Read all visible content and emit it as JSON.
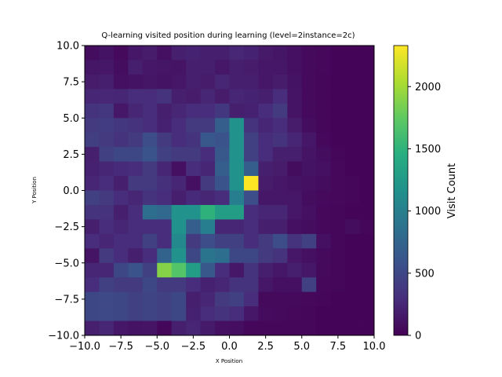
{
  "chart_data": {
    "type": "heatmap",
    "title": "Q-learning visited position during learning (level=2instance=2c)",
    "xlabel": "X Position",
    "ylabel": "Y Position",
    "xlim": [
      -10,
      10
    ],
    "ylim": [
      -10,
      10
    ],
    "x_ticks": [
      -10.0,
      -7.5,
      -5.0,
      -2.5,
      0.0,
      2.5,
      5.0,
      7.5,
      10.0
    ],
    "y_ticks": [
      -10.0,
      -7.5,
      -5.0,
      -2.5,
      0.0,
      2.5,
      5.0,
      7.5,
      10.0
    ],
    "x_tick_labels": [
      "−10.0",
      "−7.5",
      "−5.0",
      "−2.5",
      "0.0",
      "2.5",
      "5.0",
      "7.5",
      "10.0"
    ],
    "y_tick_labels": [
      "−10.0",
      "−7.5",
      "−5.0",
      "−2.5",
      "0.0",
      "2.5",
      "5.0",
      "7.5",
      "10.0"
    ],
    "colormap": "viridis",
    "colorbar": {
      "label": "Visit Count",
      "range": [
        0,
        2330
      ],
      "ticks": [
        0,
        500,
        1000,
        1500,
        2000
      ]
    },
    "grid": false,
    "bins": 20,
    "cells_note": "values rows ordered from top (y=10) to bottom (y=-10), columns from x=-10 to x=10",
    "values": [
      [
        80,
        120,
        60,
        150,
        180,
        100,
        200,
        230,
        200,
        200,
        260,
        230,
        160,
        140,
        100,
        60,
        50,
        30,
        30,
        30
      ],
      [
        140,
        150,
        80,
        200,
        150,
        140,
        130,
        200,
        200,
        150,
        200,
        180,
        150,
        150,
        100,
        60,
        50,
        30,
        30,
        30
      ],
      [
        180,
        200,
        100,
        120,
        140,
        120,
        150,
        200,
        180,
        250,
        200,
        200,
        150,
        180,
        120,
        60,
        40,
        30,
        30,
        30
      ],
      [
        250,
        260,
        250,
        300,
        300,
        350,
        200,
        180,
        250,
        180,
        250,
        230,
        200,
        300,
        130,
        60,
        40,
        30,
        30,
        30
      ],
      [
        350,
        370,
        150,
        250,
        300,
        200,
        250,
        300,
        300,
        380,
        200,
        220,
        300,
        400,
        130,
        60,
        40,
        30,
        30,
        30
      ],
      [
        400,
        420,
        380,
        350,
        300,
        220,
        300,
        400,
        400,
        700,
        1200,
        350,
        250,
        300,
        180,
        80,
        40,
        30,
        30,
        30
      ],
      [
        430,
        400,
        350,
        400,
        550,
        400,
        300,
        350,
        650,
        600,
        1200,
        450,
        300,
        350,
        250,
        150,
        50,
        30,
        30,
        30
      ],
      [
        200,
        450,
        500,
        500,
        600,
        450,
        400,
        400,
        300,
        650,
        1200,
        450,
        300,
        200,
        200,
        130,
        80,
        40,
        30,
        30
      ],
      [
        220,
        250,
        280,
        300,
        400,
        250,
        100,
        300,
        250,
        700,
        1200,
        700,
        200,
        180,
        80,
        120,
        100,
        50,
        30,
        30
      ],
      [
        250,
        300,
        200,
        400,
        400,
        320,
        250,
        100,
        400,
        600,
        1200,
        2330,
        180,
        150,
        120,
        100,
        80,
        50,
        40,
        30
      ],
      [
        450,
        400,
        300,
        250,
        350,
        300,
        200,
        280,
        250,
        300,
        1000,
        550,
        150,
        150,
        150,
        80,
        60,
        50,
        40,
        30
      ],
      [
        350,
        350,
        200,
        300,
        850,
        800,
        1200,
        1200,
        1500,
        1300,
        1300,
        300,
        250,
        250,
        150,
        100,
        50,
        40,
        30,
        30
      ],
      [
        200,
        300,
        250,
        300,
        300,
        300,
        1200,
        700,
        1000,
        250,
        250,
        300,
        200,
        200,
        100,
        80,
        50,
        40,
        80,
        40
      ],
      [
        300,
        250,
        300,
        300,
        450,
        300,
        1100,
        400,
        550,
        450,
        450,
        300,
        400,
        550,
        350,
        450,
        100,
        40,
        30,
        30
      ],
      [
        130,
        400,
        300,
        200,
        300,
        750,
        1200,
        500,
        900,
        850,
        500,
        500,
        400,
        350,
        150,
        100,
        60,
        40,
        30,
        30
      ],
      [
        250,
        250,
        500,
        600,
        450,
        1900,
        1700,
        1300,
        650,
        300,
        150,
        350,
        200,
        150,
        200,
        150,
        60,
        40,
        30,
        30
      ],
      [
        300,
        450,
        400,
        400,
        500,
        400,
        400,
        300,
        220,
        250,
        350,
        350,
        150,
        100,
        100,
        450,
        50,
        40,
        30,
        30
      ],
      [
        500,
        520,
        500,
        450,
        480,
        450,
        500,
        200,
        250,
        400,
        450,
        300,
        60,
        60,
        60,
        50,
        40,
        30,
        30,
        30
      ],
      [
        500,
        520,
        500,
        450,
        480,
        450,
        500,
        220,
        300,
        350,
        300,
        150,
        70,
        60,
        50,
        40,
        30,
        30,
        30,
        30
      ],
      [
        200,
        250,
        150,
        120,
        130,
        40,
        200,
        250,
        170,
        100,
        90,
        40,
        40,
        40,
        40,
        40,
        30,
        30,
        30,
        30
      ]
    ]
  }
}
